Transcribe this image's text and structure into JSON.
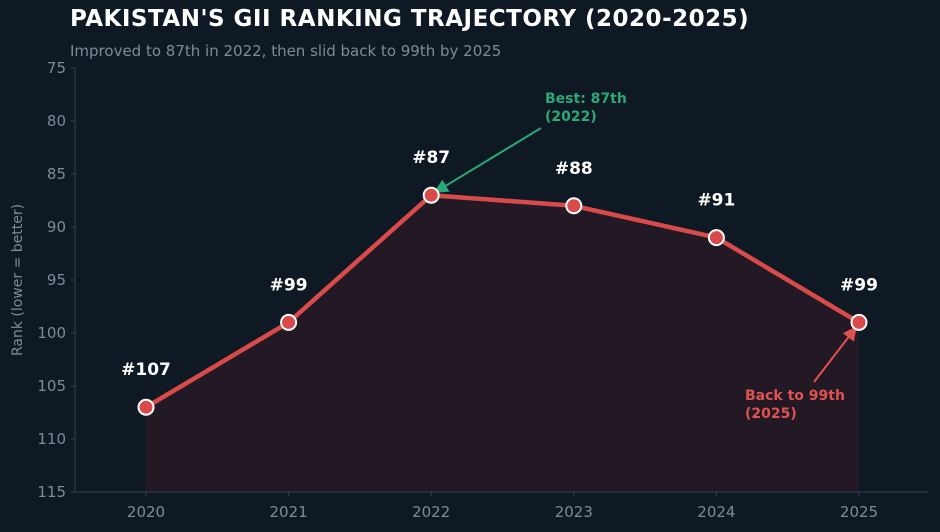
{
  "colors": {
    "background": "#0f1923",
    "line": "#d94a4a",
    "marker_fill": "#d94a4a",
    "marker_edge": "#ffffff",
    "area_fill": "#261a25",
    "best_annotation": "#2aa876",
    "back_annotation": "#e05252",
    "axis": "#33414f",
    "tick_text": "#7d8b99"
  },
  "chart_data": {
    "type": "line",
    "title": "PAKISTAN'S GII RANKING TRAJECTORY (2020-2025)",
    "subtitle": "Improved to 87th in 2022, then slid back to 99th by 2025",
    "xlabel": "",
    "ylabel": "Rank (lower = better)",
    "x": [
      "2020",
      "2021",
      "2022",
      "2023",
      "2024",
      "2025"
    ],
    "values": [
      107,
      99,
      87,
      88,
      91,
      99
    ],
    "point_labels": [
      "#107",
      "#99",
      "#87",
      "#88",
      "#91",
      "#99"
    ],
    "ylim": [
      115,
      75
    ],
    "y_inverted": true,
    "yticks": [
      75,
      80,
      85,
      90,
      95,
      100,
      105,
      110,
      115
    ],
    "grid": false,
    "legend": "none",
    "annotations": [
      {
        "id": "best",
        "line1": "Best: 87th",
        "line2": "(2022)",
        "target_index": 2,
        "color": "#2aa876"
      },
      {
        "id": "back",
        "line1": "Back to 99th",
        "line2": "(2025)",
        "target_index": 5,
        "color": "#e05252"
      }
    ]
  }
}
